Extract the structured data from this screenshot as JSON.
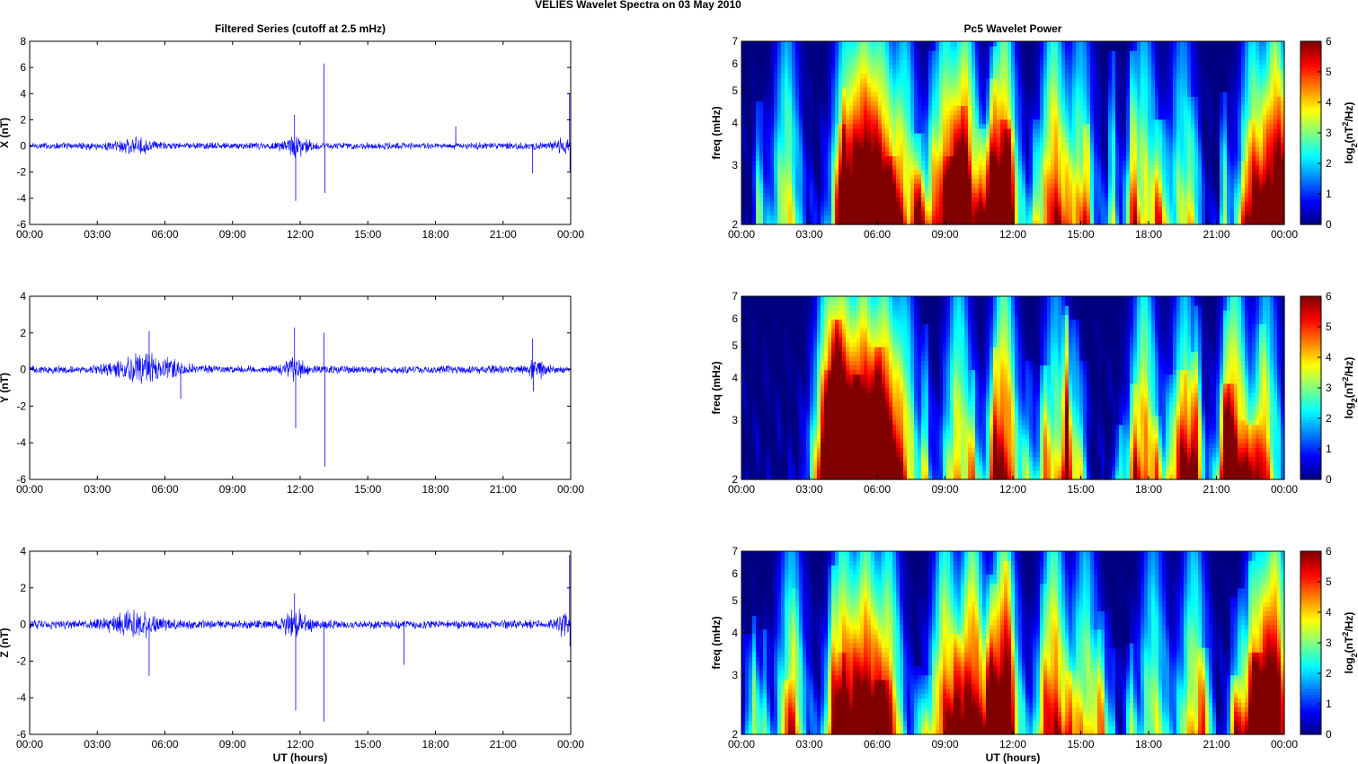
{
  "figure_title": "VELIES Wavelet Spectra on 03 May      2010",
  "chart_data": [
    {
      "type": "line",
      "title": "Filtered Series (cutoff at 2.5 mHz)",
      "ylabel": "X (nT)",
      "xlabel": "",
      "xlim": [
        0,
        24
      ],
      "ylim": [
        -6,
        8
      ],
      "yticks": [
        -6,
        -4,
        -2,
        0,
        2,
        4,
        6,
        8
      ],
      "xtick_labels": [
        "00:00",
        "03:00",
        "06:00",
        "09:00",
        "12:00",
        "15:00",
        "18:00",
        "21:00",
        "00:00"
      ],
      "line_color": "#0000ff",
      "noise_level": 0.22,
      "bursts": [
        {
          "center": 4.6,
          "width": 0.9,
          "amp": 0.35
        },
        {
          "center": 11.8,
          "width": 0.6,
          "amp": 0.5
        },
        {
          "center": 23.6,
          "width": 0.3,
          "amp": 0.4
        }
      ],
      "spikes": [
        {
          "x": 11.75,
          "y": 2.4
        },
        {
          "x": 11.8,
          "y": -4.2
        },
        {
          "x": 13.05,
          "y": 6.3
        },
        {
          "x": 13.1,
          "y": -3.6
        },
        {
          "x": 18.9,
          "y": 1.5
        },
        {
          "x": 22.3,
          "y": -2.1
        },
        {
          "x": 23.95,
          "y": 4.0
        },
        {
          "x": 23.97,
          "y": -2.0
        }
      ]
    },
    {
      "type": "heatmap",
      "title": "Pc5 Wavelet Power",
      "ylabel": "freq (mHz)",
      "xlabel": "",
      "xlim": [
        0,
        24
      ],
      "ylim": [
        2,
        7
      ],
      "yscale": "log",
      "yticks": [
        2,
        3,
        4,
        5,
        6,
        7
      ],
      "xtick_labels": [
        "00:00",
        "03:00",
        "06:00",
        "09:00",
        "12:00",
        "15:00",
        "18:00",
        "21:00",
        "00:00"
      ],
      "colorbar": {
        "label": "log2(nT2/Hz)",
        "range": [
          0,
          6
        ],
        "ticks": [
          0,
          1,
          2,
          3,
          4,
          5,
          6
        ],
        "colormap": "jet"
      },
      "events": [
        {
          "t": 2.0,
          "p": 3.5
        },
        {
          "t": 4.6,
          "p": 4.3
        },
        {
          "t": 5.4,
          "p": 5.6
        },
        {
          "t": 6.2,
          "p": 4.8
        },
        {
          "t": 7.2,
          "p": 3.8
        },
        {
          "t": 9.0,
          "p": 4.6
        },
        {
          "t": 9.9,
          "p": 5.6
        },
        {
          "t": 11.6,
          "p": 5.8
        },
        {
          "t": 13.8,
          "p": 5.0
        },
        {
          "t": 15.0,
          "p": 3.4
        },
        {
          "t": 17.8,
          "p": 3.6
        },
        {
          "t": 19.5,
          "p": 3.0
        },
        {
          "t": 22.6,
          "p": 4.2
        },
        {
          "t": 23.6,
          "p": 6.0
        }
      ]
    },
    {
      "type": "line",
      "title": "",
      "ylabel": "Y (nT)",
      "xlabel": "",
      "xlim": [
        0,
        24
      ],
      "ylim": [
        -6,
        4
      ],
      "yticks": [
        -6,
        -4,
        -2,
        0,
        2,
        4
      ],
      "xtick_labels": [
        "00:00",
        "03:00",
        "06:00",
        "09:00",
        "12:00",
        "15:00",
        "18:00",
        "21:00",
        "00:00"
      ],
      "line_color": "#0000ff",
      "noise_level": 0.18,
      "bursts": [
        {
          "center": 5.2,
          "width": 1.5,
          "amp": 0.55
        },
        {
          "center": 11.8,
          "width": 0.5,
          "amp": 0.4
        },
        {
          "center": 22.5,
          "width": 0.4,
          "amp": 0.35
        }
      ],
      "spikes": [
        {
          "x": 11.75,
          "y": 2.3
        },
        {
          "x": 11.8,
          "y": -3.2
        },
        {
          "x": 13.05,
          "y": 2.0
        },
        {
          "x": 13.1,
          "y": -5.3
        },
        {
          "x": 5.3,
          "y": 2.1
        },
        {
          "x": 6.7,
          "y": -1.6
        },
        {
          "x": 22.3,
          "y": 1.7
        },
        {
          "x": 22.35,
          "y": -1.2
        }
      ]
    },
    {
      "type": "heatmap",
      "title": "",
      "ylabel": "freq (mHz)",
      "xlabel": "",
      "xlim": [
        0,
        24
      ],
      "ylim": [
        2,
        7
      ],
      "yscale": "log",
      "yticks": [
        2,
        3,
        4,
        5,
        6,
        7
      ],
      "xtick_labels": [
        "00:00",
        "03:00",
        "06:00",
        "09:00",
        "12:00",
        "15:00",
        "18:00",
        "21:00",
        "00:00"
      ],
      "colorbar": {
        "label": "log2(nT2/Hz)",
        "range": [
          0,
          6
        ],
        "ticks": [
          0,
          1,
          2,
          3,
          4,
          5,
          6
        ],
        "colormap": "jet"
      },
      "events": [
        {
          "t": 3.8,
          "p": 5.0
        },
        {
          "t": 4.5,
          "p": 5.8
        },
        {
          "t": 5.4,
          "p": 6.0
        },
        {
          "t": 6.3,
          "p": 5.4
        },
        {
          "t": 7.2,
          "p": 3.6
        },
        {
          "t": 9.6,
          "p": 4.0
        },
        {
          "t": 11.6,
          "p": 5.6
        },
        {
          "t": 13.9,
          "p": 3.2
        },
        {
          "t": 17.8,
          "p": 4.6
        },
        {
          "t": 19.6,
          "p": 3.8
        },
        {
          "t": 21.8,
          "p": 5.2
        },
        {
          "t": 23.2,
          "p": 3.6
        }
      ]
    },
    {
      "type": "line",
      "title": "",
      "ylabel": "Z (nT)",
      "xlabel": "UT (hours)",
      "xlim": [
        0,
        24
      ],
      "ylim": [
        -6,
        4
      ],
      "yticks": [
        -6,
        -4,
        -2,
        0,
        2,
        4
      ],
      "xtick_labels": [
        "00:00",
        "03:00",
        "06:00",
        "09:00",
        "12:00",
        "15:00",
        "18:00",
        "21:00",
        "00:00"
      ],
      "line_color": "#0000ff",
      "noise_level": 0.2,
      "bursts": [
        {
          "center": 4.6,
          "width": 1.2,
          "amp": 0.45
        },
        {
          "center": 11.8,
          "width": 0.6,
          "amp": 0.5
        },
        {
          "center": 23.7,
          "width": 0.3,
          "amp": 0.4
        }
      ],
      "spikes": [
        {
          "x": 5.3,
          "y": -2.8
        },
        {
          "x": 11.75,
          "y": 1.7
        },
        {
          "x": 11.8,
          "y": -4.7
        },
        {
          "x": 13.05,
          "y": -5.3
        },
        {
          "x": 16.6,
          "y": -2.2
        },
        {
          "x": 23.95,
          "y": 3.8
        },
        {
          "x": 23.97,
          "y": -1.2
        }
      ]
    },
    {
      "type": "heatmap",
      "title": "",
      "ylabel": "freq (mHz)",
      "xlabel": "UT (hours)",
      "xlim": [
        0,
        24
      ],
      "ylim": [
        2,
        7
      ],
      "yscale": "log",
      "yticks": [
        2,
        3,
        4,
        5,
        6,
        7
      ],
      "xtick_labels": [
        "00:00",
        "03:00",
        "06:00",
        "09:00",
        "12:00",
        "15:00",
        "18:00",
        "21:00",
        "00:00"
      ],
      "colorbar": {
        "label": "log2(nT2/Hz)",
        "range": [
          0,
          6
        ],
        "ticks": [
          0,
          1,
          2,
          3,
          4,
          5,
          6
        ],
        "colormap": "jet"
      },
      "events": [
        {
          "t": 2.2,
          "p": 3.6
        },
        {
          "t": 4.5,
          "p": 5.0
        },
        {
          "t": 5.5,
          "p": 5.4
        },
        {
          "t": 6.5,
          "p": 4.4
        },
        {
          "t": 9.0,
          "p": 4.8
        },
        {
          "t": 10.2,
          "p": 5.8
        },
        {
          "t": 11.6,
          "p": 6.0
        },
        {
          "t": 13.8,
          "p": 5.2
        },
        {
          "t": 15.2,
          "p": 3.6
        },
        {
          "t": 18.2,
          "p": 3.2
        },
        {
          "t": 20.0,
          "p": 3.8
        },
        {
          "t": 22.8,
          "p": 4.0
        },
        {
          "t": 23.6,
          "p": 6.0
        }
      ]
    }
  ]
}
